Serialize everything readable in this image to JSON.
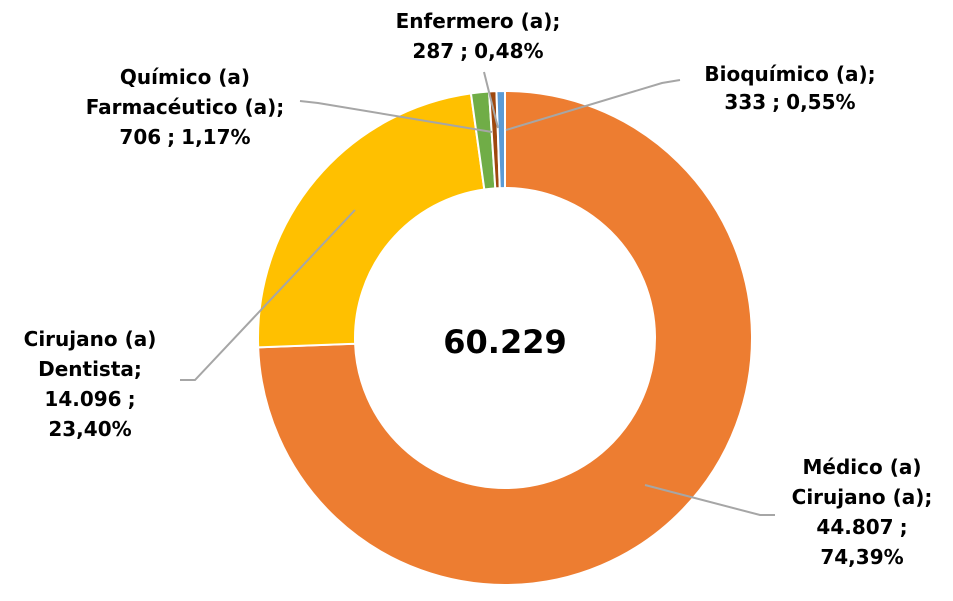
{
  "chart_data": {
    "type": "donut",
    "categories": [
      [
        "Médico (a)",
        "Cirujano (a)"
      ],
      [
        "Cirujano (a)",
        "Dentista"
      ],
      [
        "Químico  (a)",
        "Farmacéutico (a)"
      ],
      [
        "Enfermero (a)"
      ],
      [
        "Bioquímico  (a)"
      ]
    ],
    "values": [
      44807,
      14096,
      706,
      287,
      333
    ],
    "value_labels": [
      "44.807",
      "14.096",
      "706",
      "287",
      "333"
    ],
    "percent_labels": [
      "74,39%",
      "23,40%",
      "1,17%",
      "0,48%",
      "0,55%"
    ],
    "separator": ";",
    "colors": [
      "#ed7d31",
      "#ffc000",
      "#70ad47",
      "#9e480e",
      "#5b9bd5"
    ],
    "center_label": "60.229"
  }
}
